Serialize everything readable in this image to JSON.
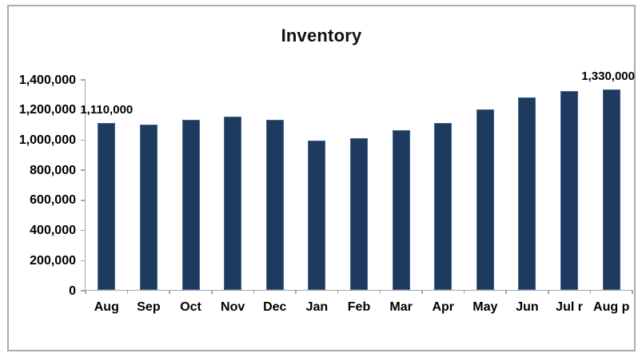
{
  "chart_data": {
    "type": "bar",
    "title": "Inventory",
    "categories": [
      "Aug",
      "Sep",
      "Oct",
      "Nov",
      "Dec",
      "Jan",
      "Feb",
      "Mar",
      "Apr",
      "May",
      "Jun",
      "Jul r",
      "Aug p"
    ],
    "values": [
      1110000,
      1100000,
      1130000,
      1150000,
      1130000,
      990000,
      1010000,
      1060000,
      1110000,
      1200000,
      1280000,
      1320000,
      1330000
    ],
    "data_labels": [
      {
        "index": 0,
        "text": "1,110,000",
        "align": "center"
      },
      {
        "index": 12,
        "text": "1,330,000",
        "align": "right"
      }
    ],
    "y_ticks": [
      "1,400,000",
      "1,200,000",
      "1,000,000",
      "800,000",
      "600,000",
      "400,000",
      "200,000",
      "0"
    ],
    "ylim": [
      0,
      1400000
    ],
    "xlabel": "",
    "ylabel": "",
    "legend_position": "none",
    "grid": "off",
    "bar_color": "#1f3a5f",
    "bar_border_color": "#44658f",
    "axis_color": "#a6a6a6",
    "frame_border_color": "#ababab",
    "text_color": "#000000",
    "background_color": "#ffffff"
  }
}
